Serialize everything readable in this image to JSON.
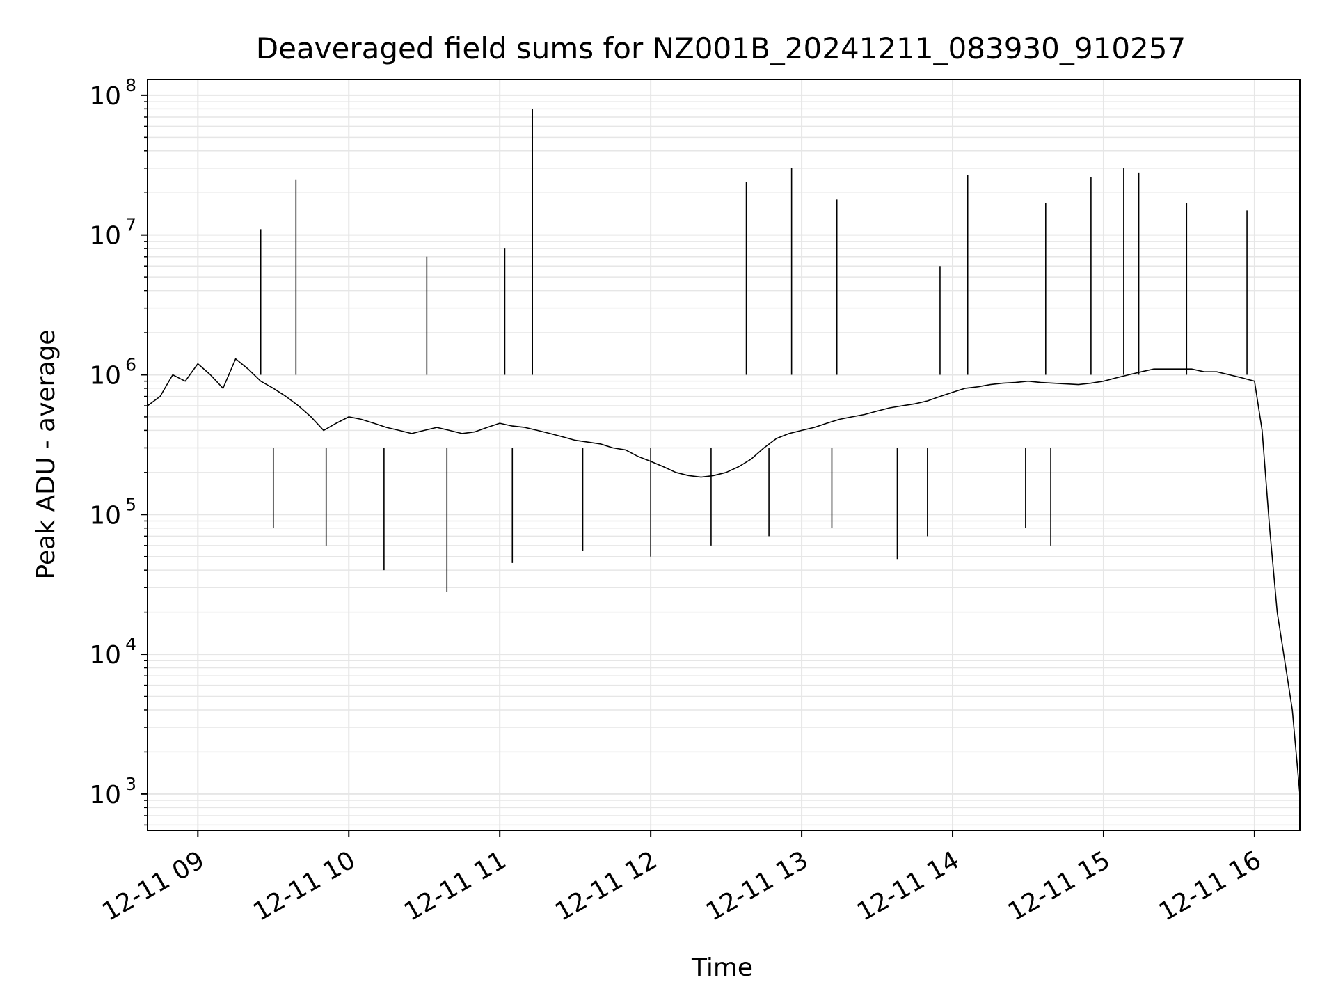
{
  "chart_data": {
    "type": "line",
    "title": "Deaveraged field sums for NZ001B_20241211_083930_910257",
    "xlabel": "Time",
    "ylabel": "Peak ADU - average",
    "x_scale": "time",
    "y_scale": "log",
    "xlim": [
      "2024-12-11 08:40",
      "2024-12-11 16:18"
    ],
    "ylim": [
      550,
      130000000
    ],
    "x_ticks": [
      {
        "value": "2024-12-11 09:00",
        "label": "12-11 09"
      },
      {
        "value": "2024-12-11 10:00",
        "label": "12-11 10"
      },
      {
        "value": "2024-12-11 11:00",
        "label": "12-11 11"
      },
      {
        "value": "2024-12-11 12:00",
        "label": "12-11 12"
      },
      {
        "value": "2024-12-11 13:00",
        "label": "12-11 13"
      },
      {
        "value": "2024-12-11 14:00",
        "label": "12-11 14"
      },
      {
        "value": "2024-12-11 15:00",
        "label": "12-11 15"
      },
      {
        "value": "2024-12-11 16:00",
        "label": "12-11 16"
      }
    ],
    "y_ticks": [
      {
        "value": 1000,
        "base": "10",
        "exp": "3"
      },
      {
        "value": 10000,
        "base": "10",
        "exp": "4"
      },
      {
        "value": 100000,
        "base": "10",
        "exp": "5"
      },
      {
        "value": 1000000,
        "base": "10",
        "exp": "6"
      },
      {
        "value": 10000000,
        "base": "10",
        "exp": "7"
      },
      {
        "value": 100000000,
        "base": "10",
        "exp": "8"
      }
    ],
    "grid": "major and minor",
    "line_color": "#000000",
    "grid_color": "#e6e6e6",
    "series": [
      {
        "x": [
          "2024-12-11 08:40",
          "2024-12-11 08:45",
          "2024-12-11 08:50",
          "2024-12-11 08:55",
          "2024-12-11 09:00",
          "2024-12-11 09:05",
          "2024-12-11 09:10",
          "2024-12-11 09:15",
          "2024-12-11 09:20",
          "2024-12-11 09:25",
          "2024-12-11 09:30",
          "2024-12-11 09:35",
          "2024-12-11 09:40",
          "2024-12-11 09:45",
          "2024-12-11 09:50",
          "2024-12-11 09:55",
          "2024-12-11 10:00",
          "2024-12-11 10:05",
          "2024-12-11 10:10",
          "2024-12-11 10:15",
          "2024-12-11 10:20",
          "2024-12-11 10:25",
          "2024-12-11 10:30",
          "2024-12-11 10:35",
          "2024-12-11 10:40",
          "2024-12-11 10:45",
          "2024-12-11 10:50",
          "2024-12-11 10:55",
          "2024-12-11 11:00",
          "2024-12-11 11:05",
          "2024-12-11 11:10",
          "2024-12-11 11:15",
          "2024-12-11 11:20",
          "2024-12-11 11:25",
          "2024-12-11 11:30",
          "2024-12-11 11:35",
          "2024-12-11 11:40",
          "2024-12-11 11:45",
          "2024-12-11 11:50",
          "2024-12-11 11:55",
          "2024-12-11 12:00",
          "2024-12-11 12:05",
          "2024-12-11 12:10",
          "2024-12-11 12:15",
          "2024-12-11 12:20",
          "2024-12-11 12:25",
          "2024-12-11 12:30",
          "2024-12-11 12:35",
          "2024-12-11 12:40",
          "2024-12-11 12:45",
          "2024-12-11 12:50",
          "2024-12-11 12:55",
          "2024-12-11 13:00",
          "2024-12-11 13:05",
          "2024-12-11 13:10",
          "2024-12-11 13:15",
          "2024-12-11 13:20",
          "2024-12-11 13:25",
          "2024-12-11 13:30",
          "2024-12-11 13:35",
          "2024-12-11 13:40",
          "2024-12-11 13:45",
          "2024-12-11 13:50",
          "2024-12-11 13:55",
          "2024-12-11 14:00",
          "2024-12-11 14:05",
          "2024-12-11 14:10",
          "2024-12-11 14:15",
          "2024-12-11 14:20",
          "2024-12-11 14:25",
          "2024-12-11 14:30",
          "2024-12-11 14:35",
          "2024-12-11 14:40",
          "2024-12-11 14:45",
          "2024-12-11 14:50",
          "2024-12-11 14:55",
          "2024-12-11 15:00",
          "2024-12-11 15:05",
          "2024-12-11 15:10",
          "2024-12-11 15:15",
          "2024-12-11 15:20",
          "2024-12-11 15:25",
          "2024-12-11 15:30",
          "2024-12-11 15:35",
          "2024-12-11 15:40",
          "2024-12-11 15:45",
          "2024-12-11 15:50",
          "2024-12-11 15:55",
          "2024-12-11 16:00",
          "2024-12-11 16:03",
          "2024-12-11 16:06",
          "2024-12-11 16:09",
          "2024-12-11 16:12",
          "2024-12-11 16:15",
          "2024-12-11 16:18"
        ],
        "values": [
          600000,
          700000,
          1000000,
          900000,
          1200000,
          1000000,
          800000,
          1300000,
          1100000,
          900000,
          800000,
          700000,
          600000,
          500000,
          400000,
          450000,
          500000,
          480000,
          450000,
          420000,
          400000,
          380000,
          400000,
          420000,
          400000,
          380000,
          390000,
          420000,
          450000,
          430000,
          420000,
          400000,
          380000,
          360000,
          340000,
          330000,
          320000,
          300000,
          290000,
          260000,
          240000,
          220000,
          200000,
          190000,
          185000,
          190000,
          200000,
          220000,
          250000,
          300000,
          350000,
          380000,
          400000,
          420000,
          450000,
          480000,
          500000,
          520000,
          550000,
          580000,
          600000,
          620000,
          650000,
          700000,
          750000,
          800000,
          820000,
          850000,
          870000,
          880000,
          900000,
          880000,
          870000,
          860000,
          850000,
          870000,
          900000,
          950000,
          1000000,
          1050000,
          1100000,
          1100000,
          1100000,
          1100000,
          1050000,
          1050000,
          1000000,
          950000,
          900000,
          400000,
          80000,
          20000,
          9000,
          4000,
          1000
        ]
      },
      {
        "x": [
          "2024-12-11 09:25",
          "2024-12-11 09:39",
          "2024-12-11 10:31",
          "2024-12-11 11:02",
          "2024-12-11 11:13",
          "2024-12-11 12:38",
          "2024-12-11 12:56",
          "2024-12-11 13:14",
          "2024-12-11 13:55",
          "2024-12-11 14:06",
          "2024-12-11 14:37",
          "2024-12-11 14:55",
          "2024-12-11 15:08",
          "2024-12-11 15:14",
          "2024-12-11 15:33",
          "2024-12-11 15:57"
        ],
        "values": [
          11000000,
          25000000,
          7000000,
          8000000,
          80000000,
          24000000,
          30000000,
          18000000,
          6000000,
          27000000,
          17000000,
          26000000,
          30000000,
          28000000,
          17000000,
          15000000
        ]
      },
      {
        "x": [
          "2024-12-11 09:30",
          "2024-12-11 09:51",
          "2024-12-11 10:14",
          "2024-12-11 10:39",
          "2024-12-11 11:05",
          "2024-12-11 11:33",
          "2024-12-11 12:00",
          "2024-12-11 12:24",
          "2024-12-11 12:47",
          "2024-12-11 13:12",
          "2024-12-11 13:38",
          "2024-12-11 13:50",
          "2024-12-11 14:29",
          "2024-12-11 14:39"
        ],
        "values": [
          80000,
          60000,
          40000,
          28000,
          45000,
          55000,
          50000,
          60000,
          70000,
          80000,
          48000,
          70000,
          80000,
          60000
        ]
      }
    ]
  }
}
